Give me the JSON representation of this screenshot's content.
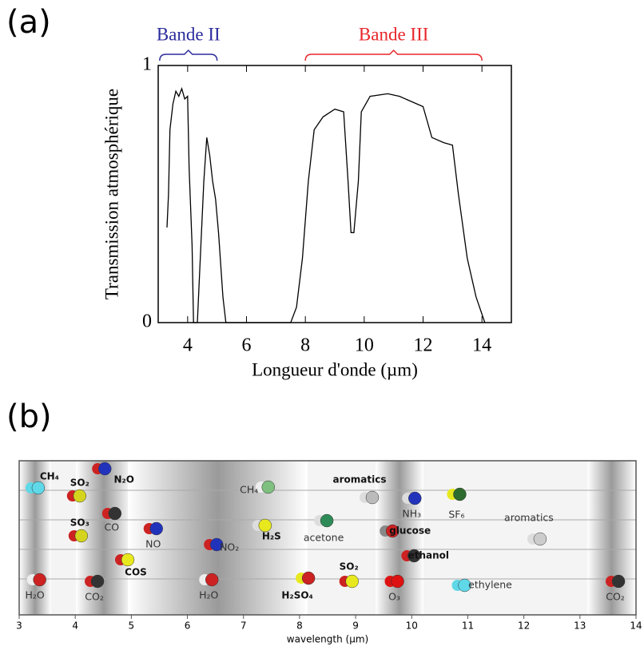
{
  "chart_data": [
    {
      "type": "line",
      "panel": "(a)",
      "xlabel": "Longueur d'onde (µm)",
      "ylabel": "Transmission atmosphérique",
      "xlim": [
        3,
        15
      ],
      "xticks": [
        4,
        6,
        8,
        10,
        12,
        14
      ],
      "ylim": [
        0,
        1
      ],
      "yticks": [
        0,
        1
      ],
      "color": "#000000",
      "annotations": [
        {
          "text": "Bande II",
          "range": [
            3.05,
            5.0
          ],
          "color": "#2b2b9c"
        },
        {
          "text": "Bande III",
          "range": [
            8.0,
            14.0
          ],
          "color": "#e8262a"
        }
      ],
      "x": [
        3.3,
        3.35,
        3.4,
        3.5,
        3.6,
        3.7,
        3.8,
        3.9,
        4.0,
        4.05,
        4.15,
        4.2,
        4.33,
        4.45,
        4.55,
        4.65,
        4.75,
        4.85,
        4.95,
        5.05,
        5.2,
        5.3,
        7.5,
        7.7,
        7.9,
        8.1,
        8.3,
        8.6,
        9.0,
        9.3,
        9.45,
        9.55,
        9.65,
        9.8,
        9.9,
        10.2,
        10.8,
        11.2,
        11.6,
        12.0,
        12.3,
        12.7,
        13.0,
        13.2,
        13.5,
        13.8,
        14.1
      ],
      "values": [
        0.37,
        0.5,
        0.75,
        0.85,
        0.9,
        0.88,
        0.91,
        0.87,
        0.88,
        0.6,
        0.3,
        0,
        0,
        0.3,
        0.55,
        0.72,
        0.65,
        0.55,
        0.48,
        0.35,
        0.1,
        0,
        0,
        0.06,
        0.25,
        0.55,
        0.75,
        0.8,
        0.83,
        0.82,
        0.55,
        0.35,
        0.35,
        0.55,
        0.82,
        0.88,
        0.89,
        0.88,
        0.86,
        0.84,
        0.72,
        0.7,
        0.69,
        0.5,
        0.25,
        0.1,
        0
      ]
    },
    {
      "type": "labels",
      "panel": "(b)",
      "xlabel": "wavelength (µm)",
      "xlim": [
        3,
        14
      ],
      "xticks": [
        3,
        4,
        5,
        6,
        7,
        8,
        9,
        10,
        11,
        12,
        13,
        14
      ],
      "labels": [
        {
          "text": "CH₄",
          "x": 3.54,
          "bold": true
        },
        {
          "text": "SO₂",
          "x": 4.08,
          "bold": true
        },
        {
          "text": "N₂O",
          "x": 4.87,
          "bold": true
        },
        {
          "text": "SO₃",
          "x": 4.08,
          "bold": true
        },
        {
          "text": "CO",
          "x": 4.65,
          "bold": false
        },
        {
          "text": "NO",
          "x": 5.39,
          "bold": false
        },
        {
          "text": "NO₂",
          "x": 6.75,
          "bold": false
        },
        {
          "text": "CH₄",
          "x": 7.1,
          "bold": false
        },
        {
          "text": "H₂S",
          "x": 7.5,
          "bold": true
        },
        {
          "text": "aromatics",
          "x": 9.07,
          "bold": true
        },
        {
          "text": "acetone",
          "x": 8.43,
          "bold": false
        },
        {
          "text": "glucose",
          "x": 9.97,
          "bold": true
        },
        {
          "text": "ethanol",
          "x": 10.3,
          "bold": true
        },
        {
          "text": "NH₃",
          "x": 10.0,
          "bold": false
        },
        {
          "text": "SF₆",
          "x": 10.8,
          "bold": false
        },
        {
          "text": "aromatics",
          "x": 12.09,
          "bold": false
        },
        {
          "text": "ethylene",
          "x": 11.4,
          "bold": false
        },
        {
          "text": "H₂O",
          "x": 3.28,
          "bold": false
        },
        {
          "text": "CO₂",
          "x": 4.34,
          "bold": false
        },
        {
          "text": "COS",
          "x": 5.08,
          "bold": true
        },
        {
          "text": "H₂O",
          "x": 6.38,
          "bold": false
        },
        {
          "text": "H₂SO₄",
          "x": 7.96,
          "bold": true
        },
        {
          "text": "SO₂",
          "x": 8.88,
          "bold": true
        },
        {
          "text": "O₃",
          "x": 9.69,
          "bold": false
        },
        {
          "text": "CO₂",
          "x": 13.63,
          "bold": false
        }
      ]
    }
  ]
}
